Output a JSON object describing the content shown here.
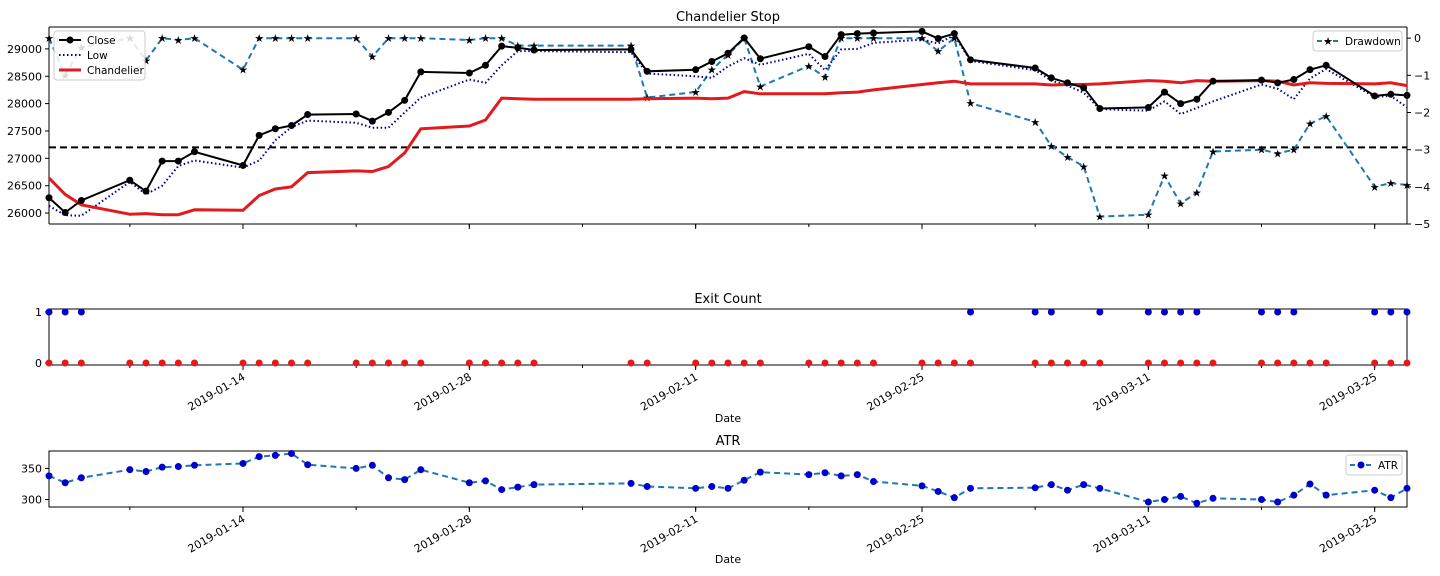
{
  "chart_data": [
    {
      "type": "line",
      "title": "Chandelier Stop",
      "ylim": [
        25800,
        29400
      ],
      "y_ticks": [
        26000,
        26500,
        27000,
        27500,
        28000,
        28500,
        29000
      ],
      "y2lim": [
        -5,
        0.3
      ],
      "y2_ticks": [
        0,
        -1,
        -2,
        -3,
        -4,
        -5
      ],
      "hline": 27200,
      "legend_left": [
        "Close",
        "Low",
        "Chandelier"
      ],
      "legend_right": [
        "Drawdown"
      ],
      "dates": [
        "2019-01-02",
        "2019-01-03",
        "2019-01-04",
        "2019-01-07",
        "2019-01-08",
        "2019-01-09",
        "2019-01-10",
        "2019-01-11",
        "2019-01-14",
        "2019-01-15",
        "2019-01-16",
        "2019-01-17",
        "2019-01-18",
        "2019-01-21",
        "2019-01-22",
        "2019-01-23",
        "2019-01-24",
        "2019-01-25",
        "2019-01-28",
        "2019-01-29",
        "2019-01-30",
        "2019-01-31",
        "2019-02-01",
        "2019-02-07",
        "2019-02-08",
        "2019-02-11",
        "2019-02-12",
        "2019-02-13",
        "2019-02-14",
        "2019-02-15",
        "2019-02-18",
        "2019-02-19",
        "2019-02-20",
        "2019-02-21",
        "2019-02-22",
        "2019-02-25",
        "2019-02-26",
        "2019-02-27",
        "2019-02-28",
        "2019-03-04",
        "2019-03-05",
        "2019-03-06",
        "2019-03-07",
        "2019-03-08",
        "2019-03-11",
        "2019-03-12",
        "2019-03-13",
        "2019-03-14",
        "2019-03-15",
        "2019-03-18",
        "2019-03-19",
        "2019-03-20",
        "2019-03-21",
        "2019-03-22",
        "2019-03-25",
        "2019-03-26",
        "2019-03-27"
      ],
      "series": [
        {
          "name": "Close",
          "color": "#000000",
          "values": [
            26280,
            26010,
            26230,
            26600,
            26400,
            26950,
            26950,
            27120,
            26870,
            27420,
            27540,
            27600,
            27800,
            27810,
            27680,
            27840,
            28060,
            28580,
            28560,
            28700,
            29050,
            29020,
            28980,
            28990,
            28590,
            28620,
            28770,
            28920,
            29200,
            28820,
            29040,
            28860,
            29260,
            29280,
            29290,
            29320,
            29190,
            29280,
            28800,
            28650,
            28470,
            28380,
            28290,
            27910,
            27930,
            28210,
            28000,
            28080,
            28410,
            28430,
            28380,
            28440,
            28620,
            28700,
            28140,
            28170,
            28150
          ]
        },
        {
          "name": "Low",
          "color": "#00008b",
          "values": [
            26130,
            25960,
            25950,
            26570,
            26340,
            26500,
            26860,
            26960,
            26830,
            26960,
            27330,
            27570,
            27690,
            27650,
            27560,
            27560,
            27840,
            28110,
            28440,
            28380,
            28700,
            28960,
            28960,
            28940,
            28550,
            28500,
            28470,
            28680,
            28830,
            28710,
            28910,
            28610,
            28990,
            29000,
            29110,
            29170,
            29100,
            29250,
            28780,
            28610,
            28420,
            28330,
            28200,
            27900,
            27870,
            28040,
            27810,
            27920,
            28040,
            28350,
            28270,
            28080,
            28460,
            28630,
            28120,
            28140,
            27930
          ]
        },
        {
          "name": "Chandelier",
          "color": "#e31a1c",
          "values": [
            26640,
            26340,
            26150,
            25980,
            25990,
            25970,
            25970,
            26060,
            26050,
            26320,
            26440,
            26480,
            26740,
            26770,
            26760,
            26850,
            27100,
            27540,
            27590,
            27700,
            28100,
            28090,
            28080,
            28080,
            28090,
            28100,
            28090,
            28100,
            28220,
            28180,
            28180,
            28180,
            28200,
            28210,
            28250,
            28350,
            28380,
            28410,
            28360,
            28360,
            28340,
            28350,
            28350,
            28360,
            28420,
            28410,
            28380,
            28420,
            28410,
            28420,
            28410,
            28340,
            28380,
            28370,
            28360,
            28380,
            28330
          ]
        },
        {
          "name": "Drawdown",
          "color": "#1f77b4",
          "values": [
            0,
            -1.0,
            -0.25,
            0,
            -0.6,
            0,
            -0.05,
            0,
            -0.85,
            0,
            0,
            0,
            0,
            0,
            -0.5,
            0,
            0,
            0,
            -0.05,
            0,
            0,
            -0.2,
            -0.2,
            -0.2,
            -1.6,
            -1.45,
            -0.85,
            -0.45,
            0,
            -1.3,
            -0.75,
            -1.05,
            0,
            0,
            0,
            0,
            -0.35,
            0,
            -1.75,
            -2.25,
            -2.9,
            -3.2,
            -3.45,
            -4.8,
            -4.75,
            -3.7,
            -4.45,
            -4.15,
            -3.05,
            -3.0,
            -3.1,
            -3.0,
            -2.3,
            -2.1,
            -4.0,
            -3.9,
            -3.95
          ]
        }
      ]
    },
    {
      "type": "scatter",
      "title": "Exit Count",
      "xlabel": "Date",
      "ylim": [
        0,
        1
      ],
      "y_ticks": [
        0,
        1
      ],
      "x_ticks": [
        "2019-01-14",
        "2019-01-28",
        "2019-02-11",
        "2019-02-25",
        "2019-03-11",
        "2019-03-25"
      ],
      "series": [
        {
          "name": "exit-1",
          "color": "#0000cd",
          "value": 1,
          "indices": [
            0,
            1,
            2,
            38,
            39,
            40,
            43,
            44,
            45,
            46,
            47,
            49,
            50,
            51,
            54,
            55,
            56
          ]
        },
        {
          "name": "exit-0",
          "color": "#e31a1c",
          "value": 0,
          "indices": [
            0,
            1,
            2,
            3,
            4,
            5,
            6,
            7,
            8,
            9,
            10,
            11,
            12,
            13,
            14,
            15,
            16,
            17,
            18,
            19,
            20,
            21,
            22,
            23,
            24,
            25,
            26,
            27,
            28,
            29,
            30,
            31,
            32,
            33,
            34,
            35,
            36,
            37,
            38,
            39,
            40,
            41,
            42,
            43,
            44,
            45,
            46,
            47,
            48,
            49,
            50,
            51,
            52,
            53,
            54,
            55,
            56
          ]
        }
      ]
    },
    {
      "type": "line",
      "title": "ATR",
      "xlabel": "Date",
      "ylim": [
        288,
        378
      ],
      "y_ticks": [
        300,
        350
      ],
      "x_ticks": [
        "2019-01-14",
        "2019-01-28",
        "2019-02-11",
        "2019-02-25",
        "2019-03-11",
        "2019-03-25"
      ],
      "series": [
        {
          "name": "ATR",
          "color": "#1f77b4",
          "values": [
            338,
            327,
            335,
            348,
            345,
            352,
            353,
            355,
            358,
            369,
            371,
            374,
            356,
            350,
            355,
            335,
            332,
            348,
            327,
            330,
            316,
            320,
            324,
            326,
            321,
            318,
            321,
            318,
            331,
            344,
            340,
            343,
            338,
            340,
            329,
            322,
            313,
            303,
            318,
            319,
            324,
            315,
            324,
            318,
            296,
            300,
            305,
            294,
            302,
            300,
            296,
            307,
            325,
            307,
            315,
            303,
            318
          ]
        }
      ]
    }
  ]
}
